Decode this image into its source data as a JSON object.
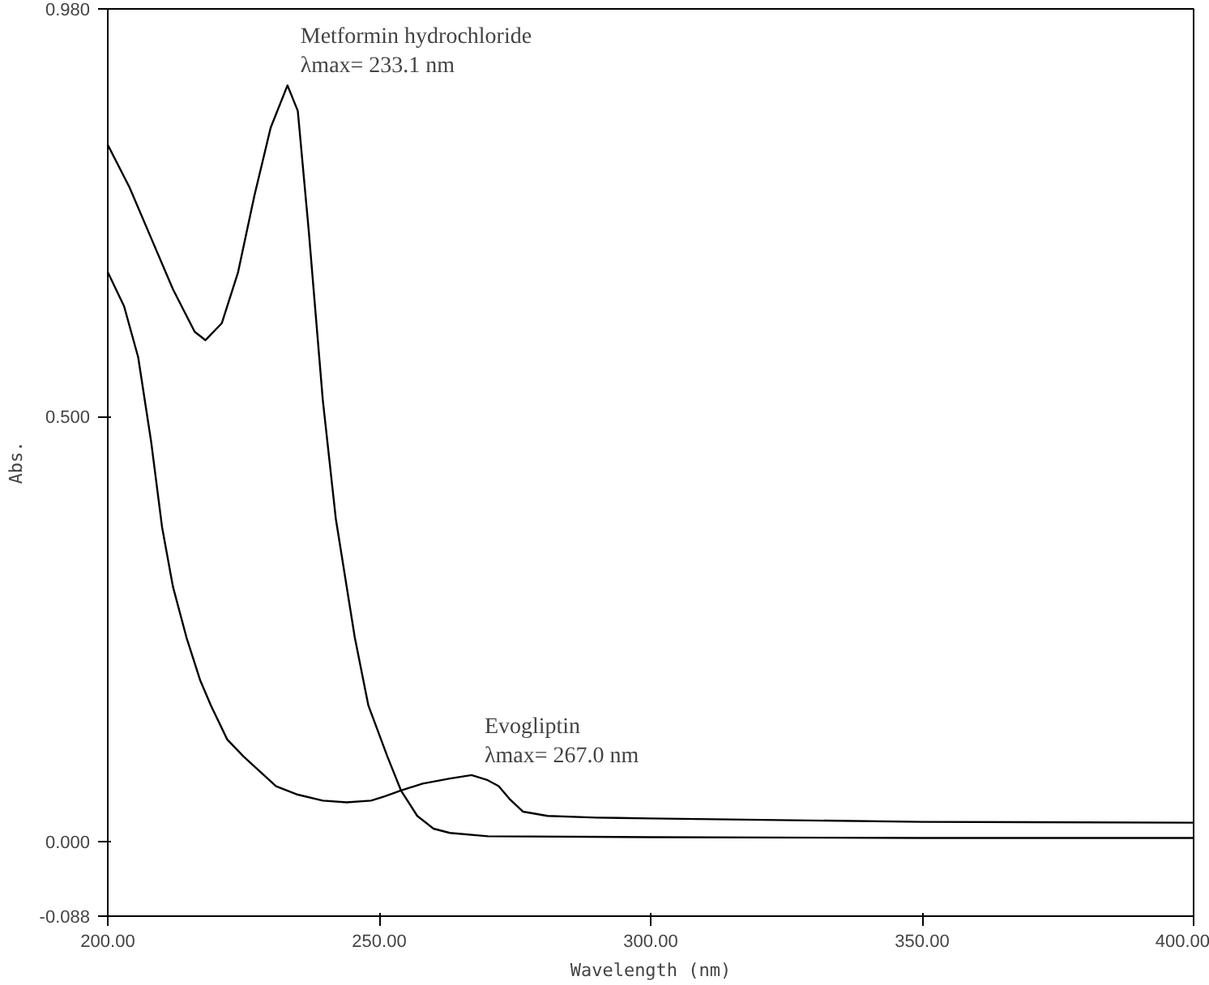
{
  "chart_data": {
    "type": "line",
    "xlabel": "Wavelength (nm)",
    "ylabel": "Abs.",
    "xlim": [
      200,
      400
    ],
    "ylim": [
      -0.088,
      0.98
    ],
    "xticks": [
      {
        "value": 200,
        "label": "200.00"
      },
      {
        "value": 250,
        "label": "250.00"
      },
      {
        "value": 300,
        "label": "300.00"
      },
      {
        "value": 350,
        "label": "350.00"
      },
      {
        "value": 400,
        "label": "400.00"
      }
    ],
    "yticks": [
      {
        "value": -0.088,
        "label": "-0.088"
      },
      {
        "value": 0,
        "label": "0.000"
      },
      {
        "value": 0.5,
        "label": "0.500"
      },
      {
        "value": 0.98,
        "label": "0.980"
      }
    ],
    "grid": false,
    "series": [
      {
        "color": "#000000",
        "x": [
          200,
          204,
          208,
          212,
          216,
          218,
          221,
          224,
          227,
          230,
          233.1,
          235,
          237,
          239.6,
          242,
          245.5,
          248,
          251.5,
          254,
          257,
          260,
          263,
          270,
          300,
          350,
          400
        ],
        "values": [
          0.82,
          0.77,
          0.71,
          0.65,
          0.6,
          0.59,
          0.61,
          0.67,
          0.76,
          0.84,
          0.89,
          0.86,
          0.72,
          0.52,
          0.38,
          0.24,
          0.16,
          0.1,
          0.06,
          0.03,
          0.015,
          0.01,
          0.006,
          0.005,
          0.004,
          0.004
        ]
      },
      {
        "color": "#000000",
        "x": [
          200,
          203,
          205.6,
          208,
          210,
          212,
          214.5,
          217,
          219,
          222,
          225,
          231,
          235,
          239.6,
          244,
          248.5,
          251,
          254,
          258,
          263,
          267,
          270,
          272,
          274,
          276.5,
          281,
          290,
          300,
          350,
          400
        ],
        "values": [
          0.67,
          0.63,
          0.57,
          0.47,
          0.37,
          0.3,
          0.24,
          0.19,
          0.16,
          0.12,
          0.1,
          0.065,
          0.055,
          0.048,
          0.046,
          0.048,
          0.053,
          0.06,
          0.068,
          0.074,
          0.078,
          0.072,
          0.065,
          0.05,
          0.035,
          0.03,
          0.028,
          0.027,
          0.023,
          0.022
        ]
      }
    ],
    "annotations": [
      {
        "text": "Metformin hydrochloride\nλmax= 233.1 nm",
        "x": 233.1,
        "y": 0.89
      },
      {
        "text": "Evogliptin\nλmax= 267.0 nm",
        "x": 267,
        "y": 0.078
      }
    ]
  }
}
